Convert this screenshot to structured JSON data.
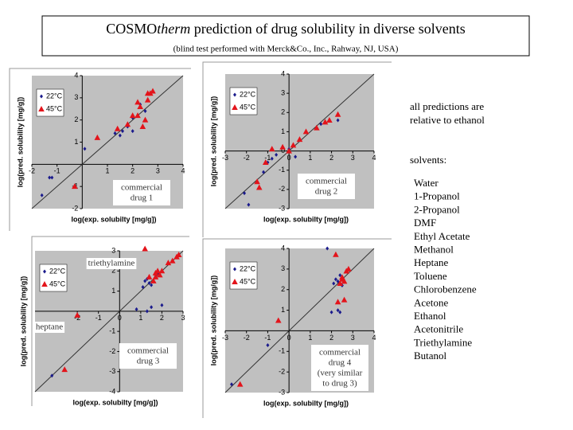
{
  "title_parts": [
    "COSMO",
    "therm",
    " prediction of drug solubility in diverse solvents"
  ],
  "subtitle": "(blind test performed with Merck&Co., Inc., Rahway, NJ, USA)",
  "note_lines": [
    "all predictions are",
    "relative to ethanol"
  ],
  "solvents_heading": "solvents:",
  "solvents": [
    "Water",
    "1-Propanol",
    "2-Propanol",
    "DMF",
    "Ethyl Acetate",
    "Methanol",
    "Heptane",
    "Toluene",
    "Chlorobenzene",
    "Acetone",
    "Ethanol",
    "Acetonitrile",
    "Triethylamine",
    "Butanol"
  ],
  "chart_data": [
    {
      "type": "scatter",
      "xlabel": "log(exp. solubilty [mg/g])",
      "ylabel": "log(pred. solubility [mg/g])",
      "xlim": [
        -2,
        4
      ],
      "ylim": [
        -2,
        4
      ],
      "xticks": [
        -2,
        -1,
        1,
        2,
        3,
        4
      ],
      "yticks": [
        -2,
        -1,
        1,
        2,
        3,
        4
      ],
      "annotation": [
        "commercial",
        "drug 1"
      ],
      "series": [
        {
          "name": "22°C",
          "color": "#1a1a8c",
          "marker": "diamond",
          "x": [
            -1.6,
            -1.3,
            -1.2,
            0.1,
            1.3,
            1.5,
            1.6,
            1.8,
            2.0,
            2.0,
            2.2,
            2.3,
            2.5
          ],
          "values": [
            -1.4,
            -0.6,
            -0.6,
            0.7,
            1.4,
            1.3,
            1.5,
            1.7,
            1.5,
            2.1,
            2.2,
            2.7,
            2.4
          ]
        },
        {
          "name": "45°C",
          "color": "#e3141b",
          "marker": "triangle",
          "x": [
            -0.3,
            0.6,
            1.4,
            1.8,
            2.0,
            2.2,
            2.3,
            2.4,
            2.5,
            2.6,
            2.7,
            2.8,
            2.6,
            2.2
          ],
          "values": [
            -1.0,
            1.2,
            1.6,
            1.8,
            2.2,
            2.2,
            2.6,
            1.7,
            2.0,
            2.9,
            3.2,
            3.3,
            3.2,
            2.8
          ]
        }
      ]
    },
    {
      "type": "scatter",
      "xlabel": "log(exp. solubilty [mg/g])",
      "ylabel": "log(pred. solubility [mg/g])",
      "xlim": [
        -3,
        4
      ],
      "ylim": [
        -3,
        4
      ],
      "xticks": [
        -3,
        -2,
        -1,
        0,
        1,
        2,
        3,
        4
      ],
      "yticks": [
        -3,
        -2,
        -1,
        0,
        1,
        2,
        3,
        4
      ],
      "annotation": [
        "commercial",
        "drug 2"
      ],
      "series": [
        {
          "name": "22°C",
          "color": "#1a1a8c",
          "marker": "diamond",
          "x": [
            -2.1,
            -1.9,
            -1.2,
            -1.0,
            -0.8,
            -0.6,
            0.3,
            0.0,
            1.5,
            1.7,
            2.3
          ],
          "values": [
            -2.2,
            -2.8,
            -1.1,
            -0.6,
            -0.4,
            -0.2,
            -0.3,
            0.1,
            1.4,
            1.5,
            1.6
          ]
        },
        {
          "name": "45°C",
          "color": "#e3141b",
          "marker": "triangle",
          "x": [
            -1.5,
            -1.4,
            -1.1,
            -0.8,
            -0.3,
            0.0,
            0.2,
            0.5,
            0.8,
            1.3,
            1.9,
            2.3,
            1.7
          ],
          "values": [
            -1.6,
            -1.9,
            -0.6,
            0.1,
            0.2,
            0.0,
            0.3,
            0.6,
            1.0,
            1.2,
            1.6,
            1.9,
            1.5
          ]
        }
      ]
    },
    {
      "type": "scatter",
      "xlabel": "log(exp. solubilty [mg/g])",
      "ylabel": "log(pred. solubility [mg/g])",
      "xlim": [
        -4,
        3
      ],
      "ylim": [
        -4,
        3
      ],
      "xticks": [
        -2,
        -1,
        0,
        1,
        2,
        3
      ],
      "yticks": [
        -4,
        -3,
        -2,
        -1,
        1,
        2,
        3
      ],
      "annotation": [
        "commercial",
        "drug 3"
      ],
      "labels": [
        "triethylamine",
        "heptane"
      ],
      "series": [
        {
          "name": "22°C",
          "color": "#1a1a8c",
          "marker": "diamond",
          "x": [
            -3.2,
            0.8,
            1.1,
            1.2,
            1.3,
            1.4,
            1.5,
            1.5,
            1.7,
            1.8,
            2.0,
            2.0,
            1.3
          ],
          "values": [
            -3.2,
            0.1,
            1.2,
            1.5,
            1.6,
            1.4,
            1.3,
            0.2,
            1.8,
            1.9,
            2.0,
            0.3,
            0.0
          ]
        },
        {
          "name": "45°C",
          "color": "#e3141b",
          "marker": "triangle",
          "x": [
            -2.6,
            -2.0,
            1.2,
            1.4,
            1.7,
            1.8,
            1.9,
            2.0,
            2.3,
            2.5,
            2.7,
            2.8,
            1.6,
            1.7
          ],
          "values": [
            -2.9,
            -0.2,
            3.1,
            1.7,
            1.9,
            2.0,
            1.8,
            2.0,
            2.4,
            2.5,
            2.7,
            2.8,
            1.5,
            1.7
          ]
        }
      ]
    },
    {
      "type": "scatter",
      "xlabel": "log(exp. solubilty [mg/g])",
      "ylabel": "log(pred. solubility [mg/g])",
      "xlim": [
        -3,
        4
      ],
      "ylim": [
        -3,
        4
      ],
      "xticks": [
        -3,
        -2,
        -1,
        0,
        1,
        2,
        3,
        4
      ],
      "yticks": [
        -3,
        -2,
        -1,
        1,
        2,
        3,
        4
      ],
      "annotation": [
        "commercial",
        "drug 4",
        "(very similar",
        "to drug 3)"
      ],
      "series": [
        {
          "name": "22°C",
          "color": "#1a1a8c",
          "marker": "diamond",
          "x": [
            -2.7,
            -1.0,
            1.8,
            2.0,
            2.1,
            2.2,
            2.3,
            2.3,
            2.4,
            2.5,
            2.4
          ],
          "values": [
            -2.6,
            -0.7,
            4.0,
            0.9,
            2.3,
            2.5,
            2.4,
            1.0,
            2.7,
            2.2,
            0.9
          ]
        },
        {
          "name": "45°C",
          "color": "#e3141b",
          "marker": "triangle",
          "x": [
            -2.3,
            -0.5,
            2.2,
            2.4,
            2.5,
            2.6,
            2.7,
            2.8,
            2.3,
            2.6,
            2.5
          ],
          "values": [
            -2.6,
            0.5,
            3.7,
            2.3,
            2.6,
            2.4,
            2.9,
            3.0,
            1.4,
            1.5,
            2.5
          ]
        }
      ]
    }
  ]
}
